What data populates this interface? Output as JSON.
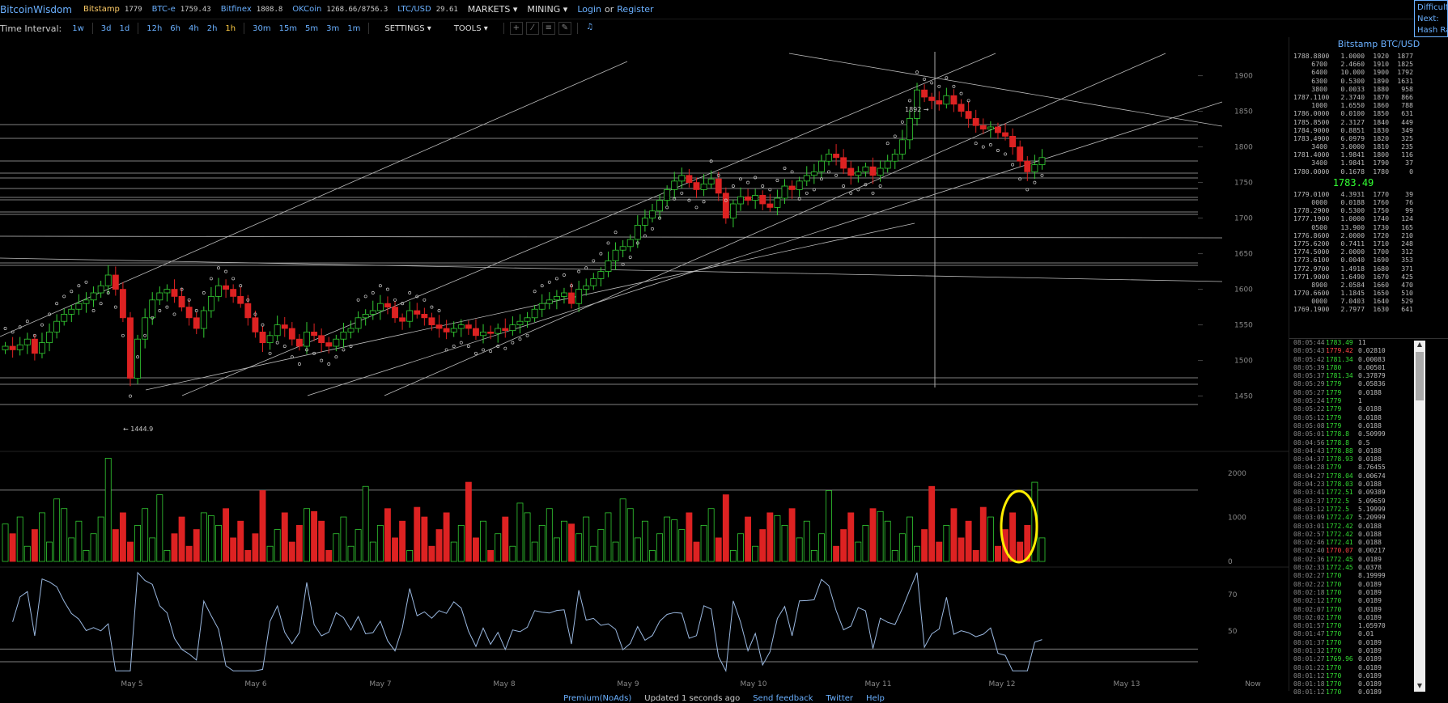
{
  "topbar": {
    "brand": "BitcoinWisdom",
    "markets": [
      {
        "name": "Bitstamp",
        "price": "1779",
        "color": "#ffcc66"
      },
      {
        "name": "BTC-e",
        "price": "1759.43",
        "color": "#6ab0ff"
      },
      {
        "name": "Bitfinex",
        "price": "1808.8",
        "color": "#6ab0ff"
      },
      {
        "name": "OKCoin",
        "price": "1268.66/8756.3",
        "color": "#6ab0ff"
      },
      {
        "name": "LTC/USD",
        "price": "29.61",
        "color": "#6ab0ff"
      }
    ],
    "markets_menu": "MARKETS ▾",
    "mining_menu": "MINING ▾",
    "login": "Login",
    "or": "or",
    "register": "Register"
  },
  "toolbar": {
    "interval_label": "Time Interval:",
    "intervals": [
      "1w",
      "3d",
      "1d",
      "12h",
      "6h",
      "4h",
      "2h",
      "1h",
      "30m",
      "15m",
      "5m",
      "3m",
      "1m"
    ],
    "active_interval": "1h",
    "settings": "SETTINGS ▾",
    "tools": "TOOLS ▾",
    "tool_icons": [
      "crosshair-icon",
      "line-icon",
      "hlines-icon",
      "draw-icon",
      "bell-icon"
    ]
  },
  "edge_panel": {
    "lines": [
      "Difficult",
      "Next:",
      "Hash Ra"
    ]
  },
  "chart_data": [
    {
      "type": "candlestick",
      "name": "price",
      "y_ticks": [
        "1900",
        "1850",
        "1800",
        "1750",
        "1700",
        "1650",
        "1600",
        "1550",
        "1500",
        "1450"
      ],
      "ylim": [
        1420,
        1920
      ],
      "x_labels": [
        "May 5",
        "May 6",
        "May 7",
        "May 8",
        "May 9",
        "May 10",
        "May 11",
        "May 12",
        "May 13",
        "Now"
      ],
      "annotations": [
        {
          "text": "← 1444.9"
        },
        {
          "text": "1892 →"
        }
      ],
      "close_series": [
        1520,
        1515,
        1522,
        1530,
        1510,
        1525,
        1540,
        1555,
        1565,
        1572,
        1580,
        1585,
        1595,
        1605,
        1620,
        1600,
        1560,
        1475,
        1530,
        1560,
        1585,
        1595,
        1600,
        1590,
        1575,
        1560,
        1545,
        1570,
        1590,
        1605,
        1600,
        1590,
        1580,
        1560,
        1540,
        1525,
        1535,
        1550,
        1545,
        1530,
        1520,
        1540,
        1535,
        1525,
        1520,
        1530,
        1540,
        1545,
        1560,
        1565,
        1570,
        1580,
        1575,
        1560,
        1555,
        1570,
        1565,
        1560,
        1550,
        1545,
        1540,
        1545,
        1550,
        1545,
        1535,
        1540,
        1538,
        1545,
        1542,
        1550,
        1555,
        1560,
        1572,
        1580,
        1585,
        1590,
        1595,
        1580,
        1600,
        1605,
        1615,
        1625,
        1640,
        1655,
        1660,
        1670,
        1690,
        1700,
        1710,
        1725,
        1740,
        1752,
        1760,
        1750,
        1740,
        1748,
        1755,
        1735,
        1700,
        1720,
        1730,
        1725,
        1732,
        1720,
        1715,
        1728,
        1745,
        1740,
        1752,
        1760,
        1765,
        1780,
        1790,
        1785,
        1770,
        1760,
        1765,
        1772,
        1760,
        1770,
        1780,
        1790,
        1810,
        1840,
        1880,
        1870,
        1865,
        1860,
        1872,
        1860,
        1850,
        1840,
        1830,
        1825,
        1828,
        1820,
        1815,
        1800,
        1780,
        1765,
        1775,
        1785
      ]
    },
    {
      "type": "bar",
      "name": "volume",
      "y_ticks": [
        "2000",
        "1000",
        "0"
      ],
      "ylim": [
        0,
        2500
      ]
    },
    {
      "type": "line",
      "name": "indicator",
      "y_ticks": [
        "70",
        "50"
      ],
      "ylim": [
        25,
        85
      ]
    }
  ],
  "orderbook": {
    "title": "Bitstamp BTC/USD",
    "asks": [
      [
        "1788.8800",
        "1.0000",
        "1920",
        "1877"
      ],
      [
        "6700",
        "2.4660",
        "1910",
        "1825"
      ],
      [
        "6400",
        "10.000",
        "1900",
        "1792"
      ],
      [
        "6300",
        "0.5300",
        "1890",
        "1631"
      ],
      [
        "3800",
        "0.0033",
        "1880",
        "958"
      ],
      [
        "1787.1100",
        "2.3740",
        "1870",
        "866"
      ],
      [
        "1000",
        "1.6550",
        "1860",
        "788"
      ],
      [
        "1786.0000",
        "0.0100",
        "1850",
        "631"
      ],
      [
        "1785.8500",
        "2.3127",
        "1840",
        "449"
      ],
      [
        "1784.9000",
        "0.8851",
        "1830",
        "349"
      ],
      [
        "1783.4900",
        "6.0979",
        "1820",
        "325"
      ],
      [
        "3400",
        "3.0000",
        "1810",
        "235"
      ],
      [
        "1781.4000",
        "1.9841",
        "1800",
        "116"
      ],
      [
        "3400",
        "1.9841",
        "1790",
        "37"
      ],
      [
        "1780.0000",
        "0.1678",
        "1780",
        "0"
      ]
    ],
    "mid_price": "1783.49",
    "bids": [
      [
        "1779.0100",
        "4.3931",
        "1770",
        "39"
      ],
      [
        "0000",
        "0.0188",
        "1760",
        "76"
      ],
      [
        "1778.2900",
        "0.5300",
        "1750",
        "99"
      ],
      [
        "1777.1900",
        "1.0000",
        "1740",
        "124"
      ],
      [
        "0500",
        "13.900",
        "1730",
        "165"
      ],
      [
        "1776.8600",
        "2.0000",
        "1720",
        "210"
      ],
      [
        "1775.6200",
        "0.7411",
        "1710",
        "248"
      ],
      [
        "1774.5000",
        "2.0000",
        "1700",
        "312"
      ],
      [
        "1773.6100",
        "0.0040",
        "1690",
        "353"
      ],
      [
        "1772.9700",
        "1.4918",
        "1680",
        "371"
      ],
      [
        "1771.9000",
        "1.6490",
        "1670",
        "425"
      ],
      [
        "8900",
        "2.0584",
        "1660",
        "470"
      ],
      [
        "1770.6600",
        "1.1845",
        "1650",
        "510"
      ],
      [
        "0000",
        "7.0403",
        "1640",
        "529"
      ],
      [
        "1769.1900",
        "2.7977",
        "1630",
        "641"
      ]
    ]
  },
  "trades": [
    [
      "08:05:44",
      "1783.49",
      "11",
      "up"
    ],
    [
      "08:05:43",
      "1779.42",
      "0.02810",
      "dn"
    ],
    [
      "08:05:42",
      "1781.34",
      "0.00083",
      "up"
    ],
    [
      "08:05:39",
      "1780",
      "0.00501",
      "up"
    ],
    [
      "08:05:37",
      "1781.34",
      "0.37879",
      "up"
    ],
    [
      "08:05:29",
      "1779",
      "0.05836",
      "up"
    ],
    [
      "08:05:27",
      "1779",
      "0.0188",
      "up"
    ],
    [
      "08:05:24",
      "1779",
      "1",
      "up"
    ],
    [
      "08:05:22",
      "1779",
      "0.0188",
      "up"
    ],
    [
      "08:05:12",
      "1779",
      "0.0188",
      "up"
    ],
    [
      "08:05:08",
      "1779",
      "0.0188",
      "up"
    ],
    [
      "08:05:01",
      "1778.8",
      "0.50999",
      "up"
    ],
    [
      "08:04:56",
      "1778.8",
      "0.5",
      "up"
    ],
    [
      "08:04:43",
      "1778.88",
      "0.0188",
      "up"
    ],
    [
      "08:04:37",
      "1778.93",
      "0.0188",
      "up"
    ],
    [
      "08:04:28",
      "1779",
      "8.76455",
      "up"
    ],
    [
      "08:04:27",
      "1778.04",
      "0.00674",
      "up"
    ],
    [
      "08:04:23",
      "1778.03",
      "0.0188",
      "up"
    ],
    [
      "08:03:41",
      "1772.51",
      "0.09389",
      "up"
    ],
    [
      "08:03:37",
      "1772.5",
      "5.09659",
      "up"
    ],
    [
      "08:03:12",
      "1772.5",
      "5.19999",
      "up"
    ],
    [
      "08:03:09",
      "1772.47",
      "5.20999",
      "up"
    ],
    [
      "08:03:01",
      "1772.42",
      "0.0188",
      "up"
    ],
    [
      "08:02:57",
      "1772.42",
      "0.0188",
      "up"
    ],
    [
      "08:02:46",
      "1772.41",
      "0.0188",
      "up"
    ],
    [
      "08:02:40",
      "1770.07",
      "0.00217",
      "dn"
    ],
    [
      "08:02:36",
      "1772.45",
      "0.0189",
      "up"
    ],
    [
      "08:02:33",
      "1772.45",
      "0.0378",
      "up"
    ],
    [
      "08:02:27",
      "1770",
      "8.19999",
      "up"
    ],
    [
      "08:02:22",
      "1770",
      "0.0189",
      "up"
    ],
    [
      "08:02:18",
      "1770",
      "0.0189",
      "up"
    ],
    [
      "08:02:12",
      "1770",
      "0.0189",
      "up"
    ],
    [
      "08:02:07",
      "1770",
      "0.0189",
      "up"
    ],
    [
      "08:02:02",
      "1770",
      "0.0189",
      "up"
    ],
    [
      "08:01:57",
      "1770",
      "1.05970",
      "up"
    ],
    [
      "08:01:47",
      "1770",
      "0.01",
      "up"
    ],
    [
      "08:01:37",
      "1770",
      "0.0189",
      "up"
    ],
    [
      "08:01:32",
      "1770",
      "0.0189",
      "up"
    ],
    [
      "08:01:27",
      "1769.96",
      "0.0189",
      "up"
    ],
    [
      "08:01:22",
      "1770",
      "0.0189",
      "up"
    ],
    [
      "08:01:12",
      "1770",
      "0.0189",
      "up"
    ],
    [
      "08:01:18",
      "1770",
      "0.0189",
      "up"
    ],
    [
      "08:01:12",
      "1770",
      "0.0189",
      "up"
    ]
  ],
  "footer": {
    "premium": "Premium(NoAds)",
    "updated": "Updated 1 seconds ago",
    "feedback": "Send feedback",
    "twitter": "Twitter",
    "help": "Help"
  },
  "colors": {
    "up": "#33cc33",
    "down": "#dd2222",
    "link": "#6ab0ff",
    "highlight": "#ffee00"
  }
}
